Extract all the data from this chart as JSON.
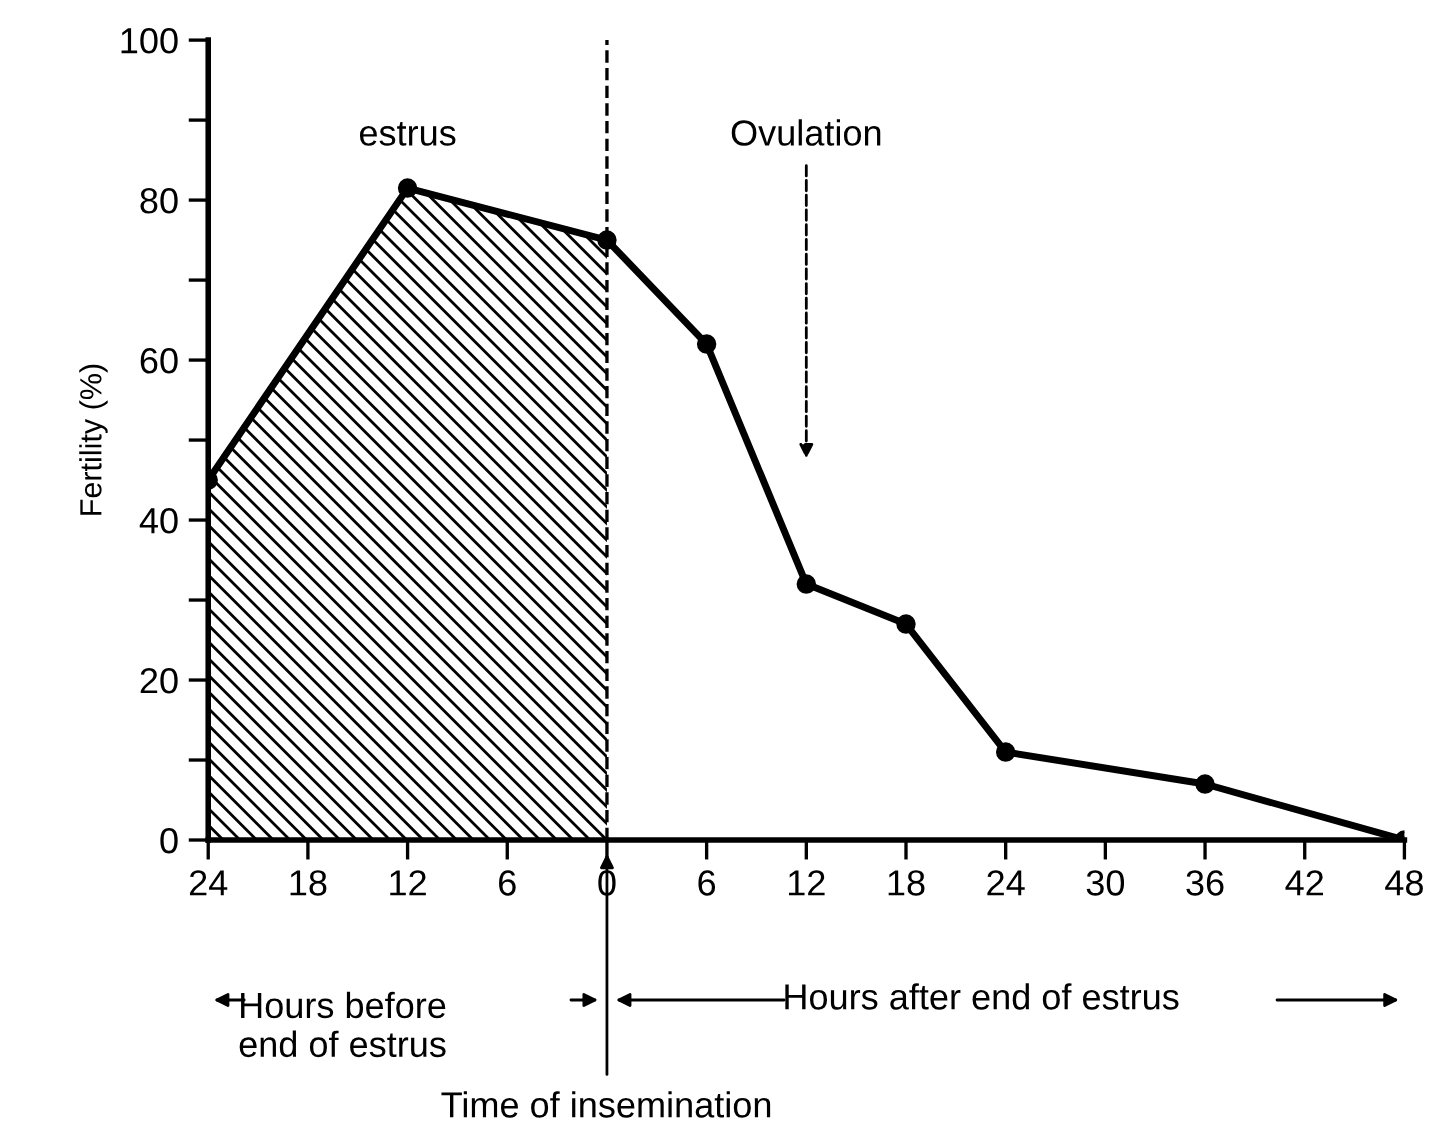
{
  "chart_data": {
    "type": "line",
    "ylabel": "Fertility (%)",
    "xlim": [
      -24,
      48
    ],
    "ylim": [
      0,
      100
    ],
    "xticks": [
      {
        "value": -24,
        "label": "24"
      },
      {
        "value": -18,
        "label": "18"
      },
      {
        "value": -12,
        "label": "12"
      },
      {
        "value": -6,
        "label": "6"
      },
      0,
      6,
      12,
      18,
      24,
      30,
      36,
      42,
      48
    ],
    "yticks": [
      0,
      {
        "value": 10,
        "label": null
      },
      20,
      {
        "value": 30,
        "label": null
      },
      40,
      {
        "value": 50,
        "label": null
      },
      60,
      {
        "value": 70,
        "label": null
      },
      80,
      {
        "value": 90,
        "label": null
      },
      100
    ],
    "marker": "circle",
    "grid": false,
    "legend": false,
    "series": [
      {
        "type": "area",
        "color": "#000000",
        "x": [
          -24,
          -12,
          0
        ],
        "values": [
          45,
          81.5,
          75
        ]
      },
      {
        "color": "#000000",
        "x": [
          -24,
          -12,
          0,
          6,
          12,
          18,
          24,
          36,
          48
        ],
        "values": [
          45,
          81.5,
          75,
          62,
          32,
          27,
          11,
          7,
          0
        ]
      }
    ],
    "ref_lines": [
      {
        "axis": "x",
        "value": 0,
        "line_style": "dashed",
        "color": "#000000"
      }
    ],
    "annotations": [
      "estrus",
      "Ovulation",
      "Hours before\nend of estrus",
      "Hours after end of estrus",
      "Time of insemination"
    ]
  }
}
